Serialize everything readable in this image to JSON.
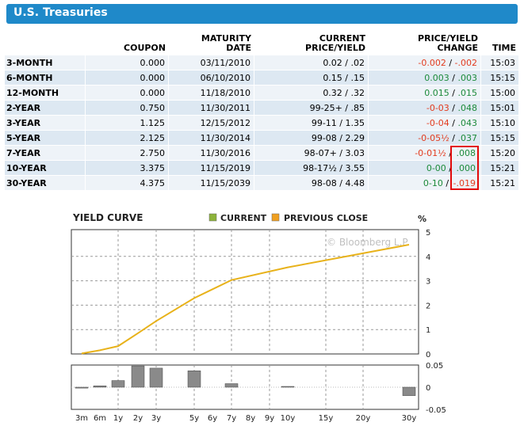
{
  "title": "U.S. Treasuries",
  "columns": [
    "",
    "COUPON",
    "MATURITY\nDATE",
    "CURRENT\nPRICE/YIELD",
    "PRICE/YIELD\nCHANGE",
    "TIME"
  ],
  "col_lines": {
    "coupon": [
      "COUPON"
    ],
    "maturity": [
      "MATURITY",
      "DATE"
    ],
    "price": [
      "CURRENT",
      "PRICE/YIELD"
    ],
    "change": [
      "PRICE/YIELD",
      "CHANGE"
    ],
    "time": [
      "TIME"
    ]
  },
  "rows": [
    {
      "name": "3-MONTH",
      "coupon": "0.000",
      "maturity": "03/11/2010",
      "price": "0.02 / .02",
      "chg_price": "-0.002",
      "chg_sep": " / ",
      "chg_yield": "-.002",
      "chg_color": "neg",
      "time": "15:03"
    },
    {
      "name": "6-MONTH",
      "coupon": "0.000",
      "maturity": "06/10/2010",
      "price": "0.15 / .15",
      "chg_price": "0.003",
      "chg_sep": " / ",
      "chg_yield": ".003",
      "chg_color": "pos",
      "time": "15:15"
    },
    {
      "name": "12-MONTH",
      "coupon": "0.000",
      "maturity": "11/18/2010",
      "price": "0.32 / .32",
      "chg_price": "0.015",
      "chg_sep": " / ",
      "chg_yield": ".015",
      "chg_color": "pos",
      "time": "15:00"
    },
    {
      "name": "2-YEAR",
      "coupon": "0.750",
      "maturity": "11/30/2011",
      "price": "99-25+ / .85",
      "chg_price": "-0-03",
      "chg_sep": " / ",
      "chg_yield": ".048",
      "chg_color": "mix",
      "time": "15:01"
    },
    {
      "name": "3-YEAR",
      "coupon": "1.125",
      "maturity": "12/15/2012",
      "price": "99-11 / 1.35",
      "chg_price": "-0-04",
      "chg_sep": " / ",
      "chg_yield": ".043",
      "chg_color": "mix",
      "time": "15:10"
    },
    {
      "name": "5-YEAR",
      "coupon": "2.125",
      "maturity": "11/30/2014",
      "price": "99-08 / 2.29",
      "chg_price": "-0-05½",
      "chg_sep": " / ",
      "chg_yield": ".037",
      "chg_color": "mix",
      "time": "15:15"
    },
    {
      "name": "7-YEAR",
      "coupon": "2.750",
      "maturity": "11/30/2016",
      "price": "98-07+ / 3.03",
      "chg_price": "-0-01½",
      "chg_sep": " / ",
      "chg_yield": ".008",
      "chg_color": "mix",
      "time": "15:20"
    },
    {
      "name": "10-YEAR",
      "coupon": "3.375",
      "maturity": "11/15/2019",
      "price": "98-17½ / 3.55",
      "chg_price": "0-00",
      "chg_sep": " / ",
      "chg_yield": ".000",
      "chg_color": "pos",
      "time": "15:21"
    },
    {
      "name": "30-YEAR",
      "coupon": "4.375",
      "maturity": "11/15/2039",
      "price": "98-08 / 4.48",
      "chg_price": "0-10",
      "chg_sep": " / ",
      "chg_yield": "-.019",
      "chg_color": "mix2",
      "time": "15:21"
    }
  ],
  "colors": {
    "header": "#1f89c9",
    "positive": "#1c8a3a",
    "negative": "#e23b1e",
    "current": "#8db33a",
    "previous": "#f0a020",
    "curve": "#e8b21a",
    "bar": "#8a8a8a",
    "highlight": "#e20a0a"
  },
  "chart_data": {
    "type": "line",
    "title": "YIELD CURVE",
    "legend": [
      "CURRENT",
      "PREVIOUS CLOSE"
    ],
    "unit_label": "%",
    "x": [
      "3m",
      "6m",
      "1y",
      "2y",
      "3y",
      "5y",
      "6y",
      "7y",
      "8y",
      "9y",
      "10y",
      "15y",
      "20y",
      "30y"
    ],
    "series": [
      {
        "name": "CURRENT",
        "x": [
          "3m",
          "6m",
          "1y",
          "2y",
          "3y",
          "5y",
          "7y",
          "10y",
          "30y"
        ],
        "values": [
          0.02,
          0.15,
          0.32,
          0.85,
          1.35,
          2.29,
          3.03,
          3.55,
          4.48
        ]
      }
    ],
    "ylim": [
      0,
      5
    ],
    "yticks": [
      "0",
      "1",
      "2",
      "3",
      "4",
      "5"
    ],
    "change_chart": {
      "type": "bar",
      "categories": [
        "3m",
        "6m",
        "1y",
        "2y",
        "3y",
        "5y",
        "7y",
        "10y",
        "30y"
      ],
      "values": [
        -0.002,
        0.003,
        0.015,
        0.048,
        0.043,
        0.037,
        0.008,
        0.0,
        -0.019
      ],
      "ylim": [
        -0.05,
        0.05
      ],
      "yticks": [
        "0.05",
        "0",
        "-0.05"
      ]
    },
    "watermark": "© Bloomberg L.P."
  }
}
